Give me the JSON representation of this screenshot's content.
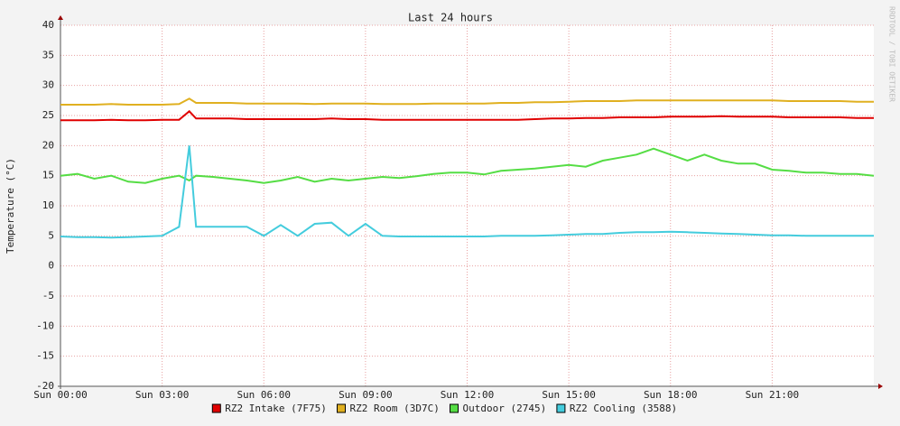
{
  "chart_data": {
    "type": "line",
    "title": "Last 24 hours",
    "y_label": "Temperature (°C)",
    "watermark": "RRDTOOL / TOBI OETIKER",
    "x": [
      0,
      0.5,
      1,
      1.5,
      2,
      2.5,
      3,
      3.5,
      3.8,
      4,
      4.5,
      5,
      5.5,
      6,
      6.5,
      7,
      7.5,
      8,
      8.5,
      9,
      9.5,
      10,
      10.5,
      11,
      11.5,
      12,
      12.5,
      13,
      13.5,
      14,
      14.5,
      15,
      15.5,
      16,
      16.5,
      17,
      17.5,
      18,
      18.5,
      19,
      19.5,
      20,
      20.5,
      21,
      21.5,
      22,
      22.5,
      23,
      23.5,
      24
    ],
    "xlim": [
      0,
      24
    ],
    "xticks": [
      {
        "value": 0,
        "label": "Sun 00:00"
      },
      {
        "value": 3,
        "label": "Sun 03:00"
      },
      {
        "value": 6,
        "label": "Sun 06:00"
      },
      {
        "value": 9,
        "label": "Sun 09:00"
      },
      {
        "value": 12,
        "label": "Sun 12:00"
      },
      {
        "value": 15,
        "label": "Sun 15:00"
      },
      {
        "value": 18,
        "label": "Sun 18:00"
      },
      {
        "value": 21,
        "label": "Sun 21:00"
      }
    ],
    "ylim": [
      -20,
      40
    ],
    "yticks": [
      -20,
      -15,
      -10,
      -5,
      0,
      5,
      10,
      15,
      20,
      25,
      30,
      35,
      40
    ],
    "grid": true,
    "legend": "bottom",
    "series": [
      {
        "name": "RZ2 Intake (7F75)",
        "color": "#e00000",
        "values": [
          24.2,
          24.2,
          24.2,
          24.3,
          24.2,
          24.2,
          24.3,
          24.3,
          25.7,
          24.5,
          24.5,
          24.5,
          24.4,
          24.4,
          24.4,
          24.4,
          24.4,
          24.5,
          24.4,
          24.4,
          24.3,
          24.3,
          24.3,
          24.3,
          24.3,
          24.3,
          24.3,
          24.3,
          24.3,
          24.4,
          24.5,
          24.5,
          24.6,
          24.6,
          24.7,
          24.7,
          24.7,
          24.8,
          24.8,
          24.8,
          24.9,
          24.8,
          24.8,
          24.8,
          24.7,
          24.7,
          24.7,
          24.7,
          24.6,
          24.6
        ]
      },
      {
        "name": "RZ2 Room (3D7C)",
        "color": "#e0b020",
        "values": [
          26.8,
          26.8,
          26.8,
          26.9,
          26.8,
          26.8,
          26.8,
          26.9,
          27.8,
          27.1,
          27.1,
          27.1,
          27.0,
          27.0,
          27.0,
          27.0,
          26.9,
          27.0,
          27.0,
          27.0,
          26.9,
          26.9,
          26.9,
          27.0,
          27.0,
          27.0,
          27.0,
          27.1,
          27.1,
          27.2,
          27.2,
          27.3,
          27.4,
          27.4,
          27.4,
          27.5,
          27.5,
          27.5,
          27.5,
          27.5,
          27.5,
          27.5,
          27.5,
          27.5,
          27.4,
          27.4,
          27.4,
          27.4,
          27.3,
          27.3
        ]
      },
      {
        "name": "Outdoor (2745)",
        "color": "#55dd44",
        "values": [
          15.0,
          15.3,
          14.5,
          15.0,
          14.0,
          13.8,
          14.5,
          15.0,
          14.2,
          15.0,
          14.8,
          14.5,
          14.2,
          13.8,
          14.2,
          14.8,
          14.0,
          14.5,
          14.2,
          14.5,
          14.8,
          14.6,
          14.9,
          15.3,
          15.5,
          15.5,
          15.2,
          15.8,
          16.0,
          16.2,
          16.5,
          16.8,
          16.5,
          17.5,
          18.0,
          18.5,
          19.5,
          18.5,
          17.5,
          18.5,
          17.5,
          17.0,
          17.0,
          16.0,
          15.8,
          15.5,
          15.5,
          15.3,
          15.3,
          15.0
        ]
      },
      {
        "name": "RZ2 Cooling (3588)",
        "color": "#44ccdd",
        "values": [
          4.9,
          4.8,
          4.8,
          4.7,
          4.8,
          4.9,
          5.0,
          6.5,
          20.0,
          6.5,
          6.5,
          6.5,
          6.5,
          5.0,
          6.8,
          5.0,
          7.0,
          7.2,
          5.0,
          7.0,
          5.0,
          4.9,
          4.9,
          4.9,
          4.9,
          4.9,
          4.9,
          5.0,
          5.0,
          5.0,
          5.1,
          5.2,
          5.3,
          5.3,
          5.5,
          5.6,
          5.6,
          5.7,
          5.6,
          5.5,
          5.4,
          5.3,
          5.2,
          5.1,
          5.1,
          5.0,
          5.0,
          5.0,
          5.0,
          5.0
        ]
      }
    ]
  }
}
